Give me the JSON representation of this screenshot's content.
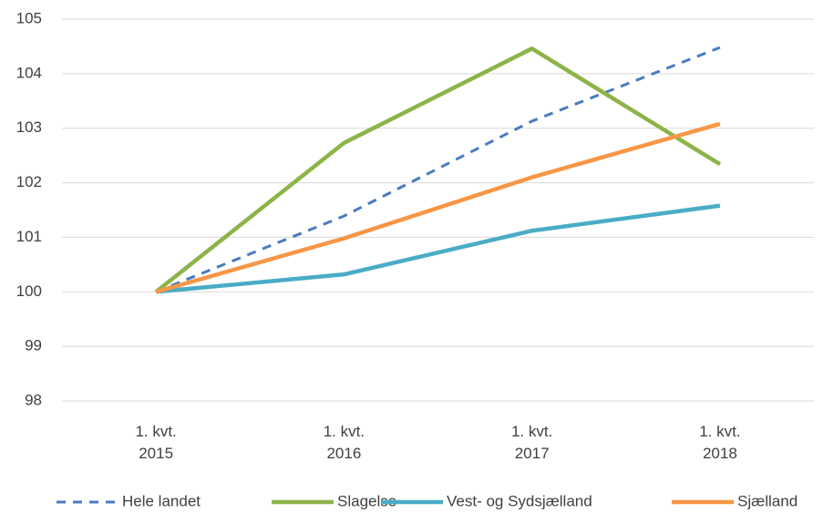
{
  "chart_data": {
    "type": "line",
    "categories": [
      "1. kvt.\n2015",
      "1. kvt.\n2016",
      "1. kvt.\n2017",
      "1. kvt.\n2018"
    ],
    "series": [
      {
        "name": "Hele landet",
        "color": "#4a7bc0",
        "style": "dashed",
        "values": [
          100,
          101.39,
          103.13,
          104.48
        ]
      },
      {
        "name": "Slagelse",
        "color": "#8db44a",
        "style": "solid",
        "values": [
          100,
          102.73,
          104.46,
          102.34
        ]
      },
      {
        "name": "Vest- og Sydsjælland",
        "color": "#4aacc6",
        "style": "solid",
        "values": [
          100,
          100.32,
          101.12,
          101.58
        ]
      },
      {
        "name": "Sjælland",
        "color": "#f79646",
        "style": "solid",
        "values": [
          100,
          100.98,
          102.1,
          103.08
        ]
      }
    ],
    "ylim": [
      98,
      105
    ],
    "yticks": [
      98,
      99,
      100,
      101,
      102,
      103,
      104,
      105
    ],
    "grid": true,
    "legend": "bottom"
  }
}
